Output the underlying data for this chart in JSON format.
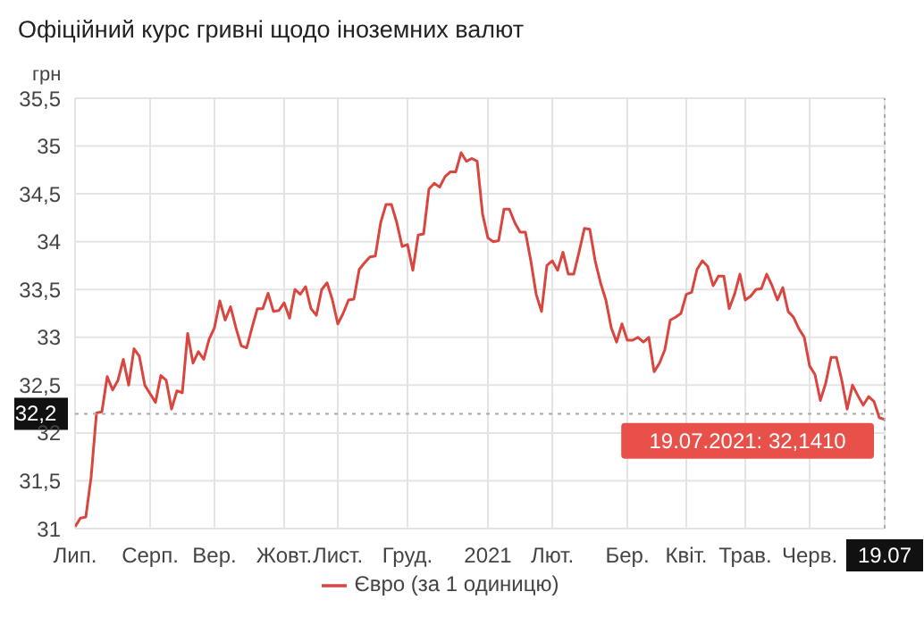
{
  "chart_data": {
    "type": "line",
    "title": "Офіційний курс гривні щодо іноземних валют",
    "ylabel": "грн",
    "categories": [
      "Лип.",
      null,
      null,
      null,
      null,
      null,
      null,
      null,
      null,
      null,
      null,
      null,
      null,
      null,
      "Серп.",
      null,
      null,
      null,
      null,
      null,
      null,
      null,
      null,
      null,
      null,
      null,
      "Вер.",
      null,
      null,
      null,
      null,
      null,
      null,
      null,
      null,
      null,
      null,
      null,
      null,
      "Жовт.",
      null,
      null,
      null,
      null,
      null,
      null,
      null,
      null,
      null,
      "Лист.",
      null,
      null,
      null,
      null,
      null,
      null,
      null,
      null,
      null,
      null,
      null,
      null,
      "Груд.",
      null,
      null,
      null,
      null,
      null,
      null,
      null,
      null,
      null,
      null,
      null,
      null,
      null,
      null,
      "2021",
      null,
      null,
      null,
      null,
      null,
      null,
      null,
      null,
      null,
      null,
      null,
      "Лют.",
      null,
      null,
      null,
      null,
      null,
      null,
      null,
      null,
      null,
      null,
      null,
      null,
      null,
      "Бер.",
      null,
      null,
      null,
      null,
      null,
      null,
      null,
      null,
      null,
      null,
      "Квіт.",
      null,
      null,
      null,
      null,
      null,
      null,
      null,
      null,
      null,
      null,
      "Трав.",
      null,
      null,
      null,
      null,
      null,
      null,
      null,
      null,
      null,
      null,
      null,
      "Черв.",
      null,
      null,
      null,
      null,
      null,
      null,
      null,
      null,
      null,
      null,
      null,
      null,
      null,
      "19.07"
    ],
    "series": [
      {
        "name": "Євро (за 1 одиницю)",
        "color": "#d9453f",
        "values": [
          31.02,
          31.11,
          31.12,
          31.54,
          32.21,
          32.22,
          32.59,
          32.45,
          32.55,
          32.77,
          32.5,
          32.88,
          32.8,
          32.5,
          32.41,
          32.32,
          32.6,
          32.55,
          32.25,
          32.44,
          32.42,
          33.04,
          32.73,
          32.85,
          32.77,
          32.98,
          33.1,
          33.38,
          33.18,
          33.32,
          33.1,
          32.91,
          32.89,
          33.1,
          33.3,
          33.3,
          33.46,
          33.27,
          33.28,
          33.36,
          33.2,
          33.5,
          33.45,
          33.53,
          33.3,
          33.23,
          33.5,
          33.57,
          33.39,
          33.14,
          33.25,
          33.39,
          33.4,
          33.71,
          33.78,
          33.84,
          33.85,
          34.2,
          34.39,
          34.39,
          34.2,
          33.95,
          33.97,
          33.7,
          34.07,
          34.08,
          34.55,
          34.61,
          34.57,
          34.68,
          34.73,
          34.73,
          34.93,
          34.84,
          34.87,
          34.84,
          34.29,
          34.04,
          34.0,
          34.01,
          34.34,
          34.34,
          34.2,
          34.1,
          34.1,
          33.8,
          33.45,
          33.27,
          33.75,
          33.8,
          33.7,
          33.89,
          33.66,
          33.66,
          33.89,
          34.14,
          34.13,
          33.8,
          33.57,
          33.39,
          33.1,
          32.95,
          33.14,
          32.97,
          32.97,
          33.0,
          32.95,
          33.0,
          32.64,
          32.73,
          32.87,
          33.18,
          33.21,
          33.25,
          33.45,
          33.47,
          33.71,
          33.8,
          33.74,
          33.54,
          33.64,
          33.64,
          33.3,
          33.45,
          33.66,
          33.39,
          33.43,
          33.5,
          33.51,
          33.66,
          33.54,
          33.39,
          33.52,
          33.27,
          33.21,
          33.09,
          33.0,
          32.7,
          32.61,
          32.34,
          32.52,
          32.79,
          32.79,
          32.55,
          32.25,
          32.5,
          32.39,
          32.29,
          32.38,
          32.33,
          32.16,
          32.141
        ]
      }
    ],
    "ylim": [
      31,
      35.5
    ],
    "yticks": [
      31,
      {
        "value": 31.5,
        "label": "31,5"
      },
      32,
      {
        "value": 32.5,
        "label": "32,5"
      },
      33,
      {
        "value": 33.5,
        "label": "33,5"
      },
      34,
      {
        "value": 34.5,
        "label": "34,5"
      },
      35,
      {
        "value": 35.5,
        "label": "35,5"
      }
    ],
    "grid": true,
    "legend": "bottom",
    "ref_lines": [
      {
        "axis": "y",
        "value": 32.2,
        "label": "32,2",
        "line_style": "dotted",
        "color": "#aaaaaa"
      },
      {
        "axis": "x",
        "value": "19.07",
        "line_style": "dotted",
        "color": "#aaaaaa"
      }
    ],
    "annotations": [
      {
        "text": "19.07.2021: 32,1410",
        "x": "19.07",
        "y": 32.141
      }
    ]
  }
}
